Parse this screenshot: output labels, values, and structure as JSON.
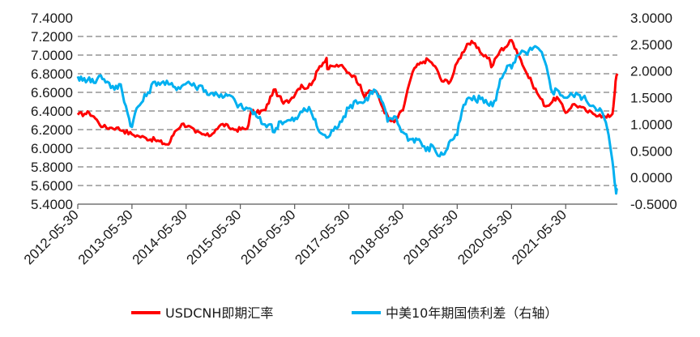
{
  "colors": {
    "usdcnh": "#ff0000",
    "spread": "#00b0f0",
    "grid": "#7f7f7f",
    "text": "#1a1a1a"
  },
  "chart_data": {
    "type": "line",
    "title": "",
    "xlabel": "",
    "ylabel": "",
    "y_left_ticks": [
      "7.4000",
      "7.2000",
      "7.0000",
      "6.8000",
      "6.6000",
      "6.4000",
      "6.2000",
      "6.0000",
      "5.8000",
      "5.6000",
      "5.4000"
    ],
    "y_right_ticks": [
      "3.0000",
      "2.5000",
      "2.0000",
      "1.5000",
      "1.0000",
      "0.5000",
      "0.0000",
      "-0.5000"
    ],
    "x_ticks": [
      "2012-05-30",
      "2013-05-30",
      "2014-05-30",
      "2015-05-30",
      "2016-05-30",
      "2017-05-30",
      "2018-05-30",
      "2019-05-30",
      "2020-05-30",
      "2021-05-30"
    ],
    "ylim_left": [
      5.4,
      7.4
    ],
    "ylim_right": [
      -0.5,
      3.0
    ],
    "x_range": [
      "2012-05-30",
      "2022-05-13"
    ],
    "grid": "horizontal dashed",
    "legend_position": "bottom",
    "series": [
      {
        "name": "USDCNH即期汇率",
        "axis": "left",
        "color": "#ff0000",
        "points": [
          [
            "2012-05-30",
            6.36
          ],
          [
            "2012-07-15",
            6.37
          ],
          [
            "2012-08-15",
            6.38
          ],
          [
            "2012-09-15",
            6.34
          ],
          [
            "2012-10-15",
            6.28
          ],
          [
            "2012-11-15",
            6.23
          ],
          [
            "2013-01-01",
            6.22
          ],
          [
            "2013-02-15",
            6.22
          ],
          [
            "2013-04-01",
            6.19
          ],
          [
            "2013-05-30",
            6.15
          ],
          [
            "2013-07-15",
            6.13
          ],
          [
            "2013-09-01",
            6.11
          ],
          [
            "2013-11-01",
            6.09
          ],
          [
            "2014-01-01",
            6.05
          ],
          [
            "2014-02-01",
            6.04
          ],
          [
            "2014-03-15",
            6.18
          ],
          [
            "2014-05-01",
            6.26
          ],
          [
            "2014-06-15",
            6.24
          ],
          [
            "2014-08-01",
            6.17
          ],
          [
            "2014-09-15",
            6.15
          ],
          [
            "2014-11-01",
            6.13
          ],
          [
            "2014-12-15",
            6.2
          ],
          [
            "2015-02-01",
            6.26
          ],
          [
            "2015-03-15",
            6.22
          ],
          [
            "2015-05-01",
            6.2
          ],
          [
            "2015-07-15",
            6.21
          ],
          [
            "2015-08-12",
            6.4
          ],
          [
            "2015-09-15",
            6.38
          ],
          [
            "2015-11-15",
            6.41
          ],
          [
            "2016-01-10",
            6.63
          ],
          [
            "2016-02-15",
            6.56
          ],
          [
            "2016-03-15",
            6.48
          ],
          [
            "2016-05-01",
            6.52
          ],
          [
            "2016-06-15",
            6.62
          ],
          [
            "2016-07-15",
            6.68
          ],
          [
            "2016-08-15",
            6.64
          ],
          [
            "2016-10-01",
            6.72
          ],
          [
            "2016-11-15",
            6.88
          ],
          [
            "2016-12-31",
            6.97
          ],
          [
            "2017-01-05",
            6.85
          ],
          [
            "2017-02-15",
            6.88
          ],
          [
            "2017-04-01",
            6.89
          ],
          [
            "2017-05-30",
            6.81
          ],
          [
            "2017-07-01",
            6.78
          ],
          [
            "2017-08-15",
            6.68
          ],
          [
            "2017-09-15",
            6.54
          ],
          [
            "2017-10-15",
            6.62
          ],
          [
            "2017-12-01",
            6.61
          ],
          [
            "2018-01-15",
            6.43
          ],
          [
            "2018-03-01",
            6.3
          ],
          [
            "2018-04-01",
            6.28
          ],
          [
            "2018-05-30",
            6.41
          ],
          [
            "2018-06-30",
            6.63
          ],
          [
            "2018-08-15",
            6.86
          ],
          [
            "2018-10-15",
            6.93
          ],
          [
            "2018-11-15",
            6.95
          ],
          [
            "2019-01-01",
            6.88
          ],
          [
            "2019-02-15",
            6.72
          ],
          [
            "2019-04-15",
            6.72
          ],
          [
            "2019-05-30",
            6.92
          ],
          [
            "2019-08-05",
            7.12
          ],
          [
            "2019-09-15",
            7.13
          ],
          [
            "2019-11-01",
            7.03
          ],
          [
            "2019-12-31",
            6.97
          ],
          [
            "2020-01-15",
            6.87
          ],
          [
            "2020-03-15",
            7.05
          ],
          [
            "2020-04-15",
            7.08
          ],
          [
            "2020-05-30",
            7.16
          ],
          [
            "2020-07-01",
            7.06
          ],
          [
            "2020-08-01",
            6.95
          ],
          [
            "2020-09-01",
            6.83
          ],
          [
            "2020-10-15",
            6.7
          ],
          [
            "2020-12-01",
            6.56
          ],
          [
            "2021-01-15",
            6.45
          ],
          [
            "2021-03-01",
            6.5
          ],
          [
            "2021-04-01",
            6.55
          ],
          [
            "2021-05-30",
            6.38
          ],
          [
            "2021-07-15",
            6.47
          ],
          [
            "2021-09-01",
            6.45
          ],
          [
            "2021-10-15",
            6.4
          ],
          [
            "2021-12-01",
            6.37
          ],
          [
            "2022-01-15",
            6.36
          ],
          [
            "2022-03-01",
            6.33
          ],
          [
            "2022-04-10",
            6.37
          ],
          [
            "2022-04-22",
            6.55
          ],
          [
            "2022-05-01",
            6.72
          ],
          [
            "2022-05-13",
            6.8
          ]
        ]
      },
      {
        "name": "中美10年期国债利差（右轴）",
        "axis": "right",
        "color": "#00b0f0",
        "points": [
          [
            "2012-05-30",
            1.9
          ],
          [
            "2012-07-01",
            1.82
          ],
          [
            "2012-08-15",
            1.88
          ],
          [
            "2012-09-15",
            1.78
          ],
          [
            "2012-11-01",
            1.92
          ],
          [
            "2012-12-15",
            1.8
          ],
          [
            "2013-02-01",
            1.65
          ],
          [
            "2013-03-15",
            1.75
          ],
          [
            "2013-05-01",
            1.2
          ],
          [
            "2013-05-30",
            0.95
          ],
          [
            "2013-06-30",
            1.3
          ],
          [
            "2013-08-01",
            1.4
          ],
          [
            "2013-09-15",
            1.6
          ],
          [
            "2013-11-01",
            1.8
          ],
          [
            "2013-12-15",
            1.78
          ],
          [
            "2014-02-01",
            1.75
          ],
          [
            "2014-03-15",
            1.7
          ],
          [
            "2014-05-01",
            1.72
          ],
          [
            "2014-06-15",
            1.8
          ],
          [
            "2014-08-01",
            1.7
          ],
          [
            "2014-09-15",
            1.72
          ],
          [
            "2014-11-01",
            1.55
          ],
          [
            "2014-12-15",
            1.6
          ],
          [
            "2015-02-01",
            1.5
          ],
          [
            "2015-03-15",
            1.55
          ],
          [
            "2015-05-01",
            1.4
          ],
          [
            "2015-06-15",
            1.3
          ],
          [
            "2015-08-01",
            1.3
          ],
          [
            "2015-09-15",
            1.15
          ],
          [
            "2015-11-01",
            1.0
          ],
          [
            "2015-12-15",
            1.0
          ],
          [
            "2016-01-15",
            0.85
          ],
          [
            "2016-02-15",
            1.05
          ],
          [
            "2016-04-01",
            1.05
          ],
          [
            "2016-06-15",
            1.1
          ],
          [
            "2016-08-01",
            1.3
          ],
          [
            "2016-09-15",
            1.25
          ],
          [
            "2016-11-15",
            0.85
          ],
          [
            "2016-12-31",
            0.75
          ],
          [
            "2017-02-15",
            0.88
          ],
          [
            "2017-04-01",
            1.05
          ],
          [
            "2017-05-30",
            1.3
          ],
          [
            "2017-07-15",
            1.45
          ],
          [
            "2017-09-01",
            1.4
          ],
          [
            "2017-10-15",
            1.55
          ],
          [
            "2017-11-15",
            1.65
          ],
          [
            "2018-01-15",
            1.4
          ],
          [
            "2018-02-15",
            1.05
          ],
          [
            "2018-04-01",
            1.15
          ],
          [
            "2018-05-30",
            0.85
          ],
          [
            "2018-07-15",
            0.72
          ],
          [
            "2018-09-15",
            0.72
          ],
          [
            "2018-11-01",
            0.5
          ],
          [
            "2018-12-15",
            0.6
          ],
          [
            "2019-02-01",
            0.4
          ],
          [
            "2019-03-15",
            0.5
          ],
          [
            "2019-04-15",
            0.7
          ],
          [
            "2019-05-30",
            0.8
          ],
          [
            "2019-07-01",
            1.25
          ],
          [
            "2019-08-15",
            1.5
          ],
          [
            "2019-10-01",
            1.45
          ],
          [
            "2019-11-15",
            1.5
          ],
          [
            "2020-01-01",
            1.35
          ],
          [
            "2020-02-15",
            1.45
          ],
          [
            "2020-03-15",
            1.85
          ],
          [
            "2020-05-01",
            2.1
          ],
          [
            "2020-05-30",
            2.05
          ],
          [
            "2020-07-15",
            2.3
          ],
          [
            "2020-09-01",
            2.35
          ],
          [
            "2020-10-15",
            2.4
          ],
          [
            "2020-11-15",
            2.45
          ],
          [
            "2020-12-31",
            2.25
          ],
          [
            "2021-01-31",
            1.95
          ],
          [
            "2021-03-01",
            1.6
          ],
          [
            "2021-04-01",
            1.65
          ],
          [
            "2021-05-30",
            1.5
          ],
          [
            "2021-07-15",
            1.55
          ],
          [
            "2021-09-01",
            1.55
          ],
          [
            "2021-10-15",
            1.45
          ],
          [
            "2021-12-01",
            1.35
          ],
          [
            "2022-01-15",
            1.3
          ],
          [
            "2022-02-15",
            1.1
          ],
          [
            "2022-03-15",
            0.8
          ],
          [
            "2022-04-10",
            0.3
          ],
          [
            "2022-04-25",
            -0.1
          ],
          [
            "2022-05-05",
            -0.3
          ],
          [
            "2022-05-13",
            -0.2
          ]
        ]
      }
    ]
  }
}
